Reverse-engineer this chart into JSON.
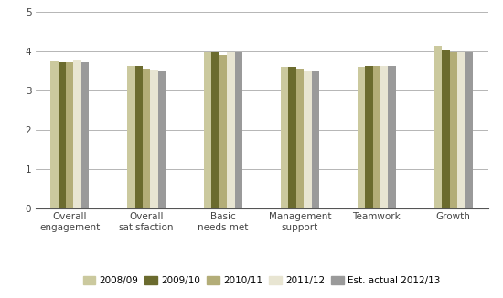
{
  "categories": [
    "Overall\nengagement",
    "Overall\nsatisfaction",
    "Basic\nneeds met",
    "Management\nsupport",
    "Teamwork",
    "Growth"
  ],
  "series": {
    "2008/09": [
      3.75,
      3.63,
      3.97,
      3.6,
      3.6,
      4.15
    ],
    "2009/10": [
      3.73,
      3.63,
      3.97,
      3.6,
      3.62,
      4.02
    ],
    "2010/11": [
      3.73,
      3.55,
      3.9,
      3.53,
      3.62,
      3.97
    ],
    "2011/12": [
      3.76,
      3.52,
      3.97,
      3.5,
      3.62,
      3.97
    ],
    "Est. actual 2012/13": [
      3.73,
      3.5,
      3.97,
      3.5,
      3.62,
      3.97
    ]
  },
  "series_order": [
    "2008/09",
    "2009/10",
    "2010/11",
    "2011/12",
    "Est. actual 2012/13"
  ],
  "colors": {
    "2008/09": "#cbc99e",
    "2009/10": "#6b6b2e",
    "2010/11": "#b3ad78",
    "2011/12": "#e8e5d2",
    "Est. actual 2012/13": "#9a9a9a"
  },
  "ylim": [
    0,
    5
  ],
  "yticks": [
    0,
    1,
    2,
    3,
    4,
    5
  ],
  "bar_width": 0.1,
  "background_color": "#ffffff",
  "grid_color": "#aaaaaa",
  "axis_color": "#555555",
  "tick_color": "#444444",
  "legend_fontsize": 7.5,
  "tick_fontsize": 7.5,
  "label_fontsize": 7.5
}
